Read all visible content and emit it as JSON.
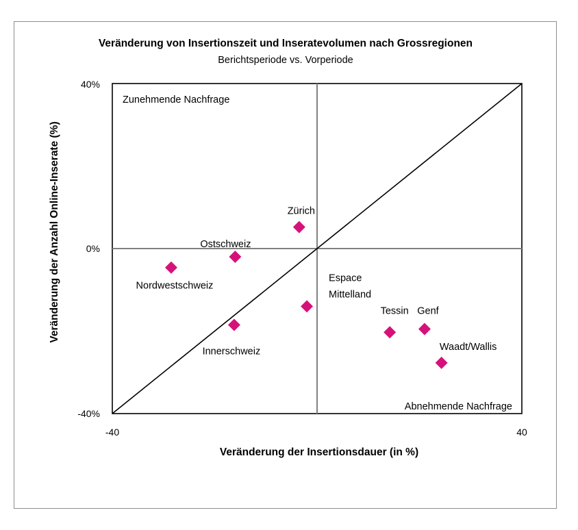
{
  "chart_data": {
    "type": "scatter",
    "title": "Veränderung von Insertionszeit und Inseratevolumen nach Grossregionen",
    "subtitle": "Berichtsperiode vs. Vorperiode",
    "xlabel": "Veränderung der Insertionsdauer (in %)",
    "ylabel": "Veränderung der Anzahl Online-Inserate (%)",
    "xlim": [
      -40,
      40
    ],
    "ylim": [
      -40,
      40
    ],
    "x_ticks": [
      "-40",
      "40"
    ],
    "y_ticks": [
      "40%",
      "0%",
      "-40%"
    ],
    "grid": false,
    "reference_lines": [
      "x=0",
      "y=0",
      "diagonal y=x"
    ],
    "marker_color": "#d6127a",
    "quadrant_labels": {
      "top_left": "Zunehmende Nachfrage",
      "bottom_right": "Abnehmende Nachfrage"
    },
    "points": [
      {
        "label": "Zürich",
        "x": -3.5,
        "y": 5.2
      },
      {
        "label": "Ostschweiz",
        "x": -16,
        "y": -2
      },
      {
        "label": "Nordwestschweiz",
        "x": -28.5,
        "y": -4.6
      },
      {
        "label": "Espace Mittelland",
        "x": -2,
        "y": -14
      },
      {
        "label": "Innerschweiz",
        "x": -16.2,
        "y": -18.5
      },
      {
        "label": "Tessin",
        "x": 14.2,
        "y": -20.3
      },
      {
        "label": "Genf",
        "x": 21,
        "y": -19.5
      },
      {
        "label": "Waadt/Wallis",
        "x": 24.3,
        "y": -27.7
      }
    ]
  }
}
